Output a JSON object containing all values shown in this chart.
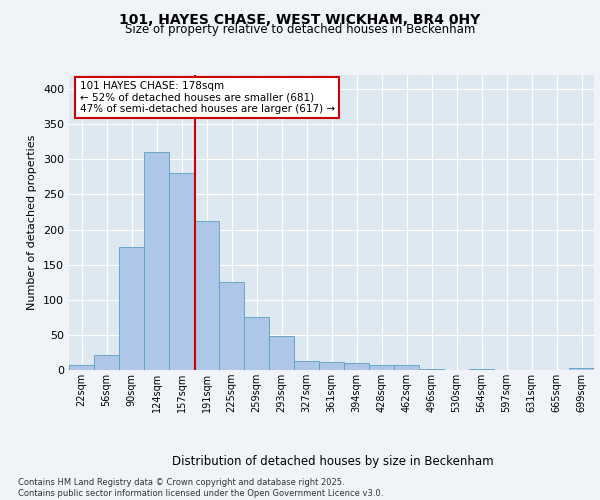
{
  "title1": "101, HAYES CHASE, WEST WICKHAM, BR4 0HY",
  "title2": "Size of property relative to detached houses in Beckenham",
  "xlabel": "Distribution of detached houses by size in Beckenham",
  "ylabel": "Number of detached properties",
  "bin_labels": [
    "22sqm",
    "56sqm",
    "90sqm",
    "124sqm",
    "157sqm",
    "191sqm",
    "225sqm",
    "259sqm",
    "293sqm",
    "327sqm",
    "361sqm",
    "394sqm",
    "428sqm",
    "462sqm",
    "496sqm",
    "530sqm",
    "564sqm",
    "597sqm",
    "631sqm",
    "665sqm",
    "699sqm"
  ],
  "bar_values": [
    7,
    21,
    175,
    310,
    280,
    212,
    125,
    75,
    48,
    13,
    12,
    10,
    7,
    7,
    2,
    0,
    1,
    0,
    0,
    0,
    3
  ],
  "bar_color": "#aec6e8",
  "bar_edge_color": "#5a9fc2",
  "vline_x_idx": 4.55,
  "vline_color": "#cc0000",
  "annotation_text": "101 HAYES CHASE: 178sqm\n← 52% of detached houses are smaller (681)\n47% of semi-detached houses are larger (617) →",
  "annotation_box_color": "#ffffff",
  "annotation_box_edge": "#cc0000",
  "ylim": [
    0,
    420
  ],
  "yticks": [
    0,
    50,
    100,
    150,
    200,
    250,
    300,
    350,
    400
  ],
  "bg_color": "#dde8f0",
  "grid_color": "#ffffff",
  "fig_bg_color": "#f0f4f8",
  "footer": "Contains HM Land Registry data © Crown copyright and database right 2025.\nContains public sector information licensed under the Open Government Licence v3.0."
}
